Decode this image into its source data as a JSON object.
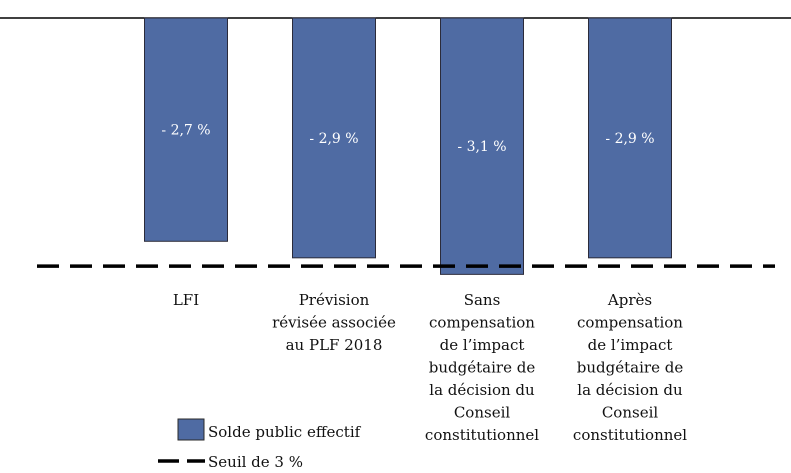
{
  "chart_data": {
    "type": "bar",
    "title": "",
    "xlabel": "",
    "ylabel": "",
    "orientation": "vertical-negative",
    "categories": [
      [
        "LFI"
      ],
      [
        "Prévision",
        "révisée associée",
        "au PLF 2018"
      ],
      [
        "Sans",
        "compensation",
        "de l’impact",
        "budgétaire de",
        "la décision du",
        "Conseil",
        "constitutionnel"
      ],
      [
        "Après",
        "compensation",
        "de l’impact",
        "budgétaire de",
        "la décision du",
        "Conseil",
        "constitutionnel"
      ]
    ],
    "series": [
      {
        "name": "Solde public effectif",
        "values": [
          -2.7,
          -2.9,
          -3.1,
          -2.9
        ],
        "labels": [
          "- 2,7 %",
          "- 2,9 %",
          "- 3,1 %",
          "- 2,9 %"
        ],
        "color": "#4F6BA3"
      }
    ],
    "reference_line": {
      "name": "Seuil de 3 %",
      "value": -3.0,
      "style": "dashed",
      "color": "#000000"
    },
    "ylim": [
      -3.2,
      0
    ],
    "grid": false,
    "axis_line_color": "#000000",
    "legend": {
      "placement": "bottom-left",
      "entries": [
        {
          "label": "Solde public effectif",
          "kind": "box",
          "color": "#4F6BA3"
        },
        {
          "label": "Seuil de 3 %",
          "kind": "dashed-line",
          "color": "#000000"
        }
      ]
    }
  }
}
